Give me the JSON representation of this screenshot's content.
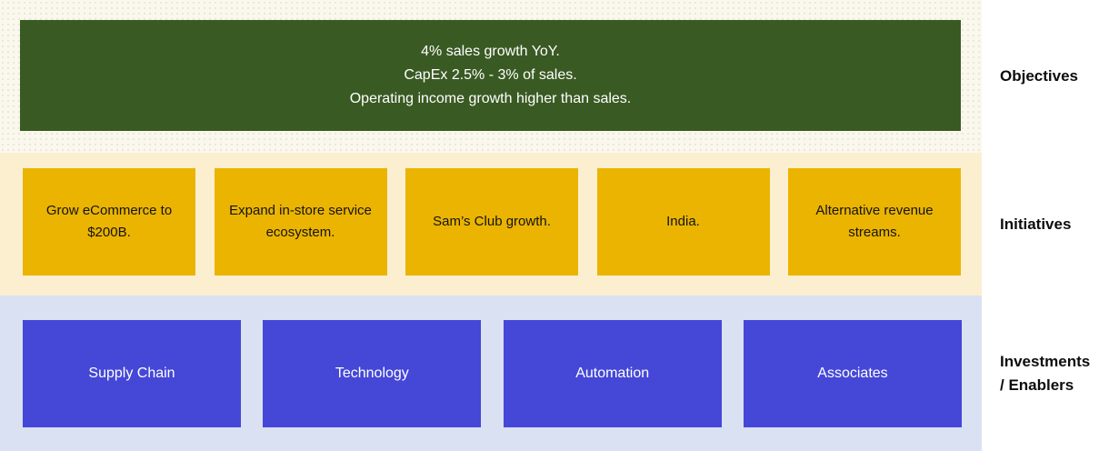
{
  "colors": {
    "objective_green": "#3A5A23",
    "initiative_gold": "#EBB400",
    "investment_blue": "#4547D6",
    "band_objectives_bg": "#FAF8EE",
    "band_objectives_dot": "#E6E1C8",
    "band_initiatives_bg": "#FCEFD0",
    "band_investments_bg": "#D9E1F2",
    "label_text": "#0D0D0D"
  },
  "objectives": {
    "label": "Objectives",
    "lines": [
      "4% sales growth YoY.",
      "CapEx 2.5% - 3% of sales.",
      "Operating income growth higher than sales."
    ]
  },
  "initiatives": {
    "label": "Initiatives",
    "items": [
      "Grow eCommerce to $200B.",
      "Expand in-store service ecosystem.",
      "Sam’s Club growth.",
      "India.",
      "Alternative revenue streams."
    ]
  },
  "investments": {
    "label_line1": "Investments",
    "label_line2": "/ Enablers",
    "items": [
      "Supply Chain",
      "Technology",
      "Automation",
      "Associates"
    ]
  }
}
